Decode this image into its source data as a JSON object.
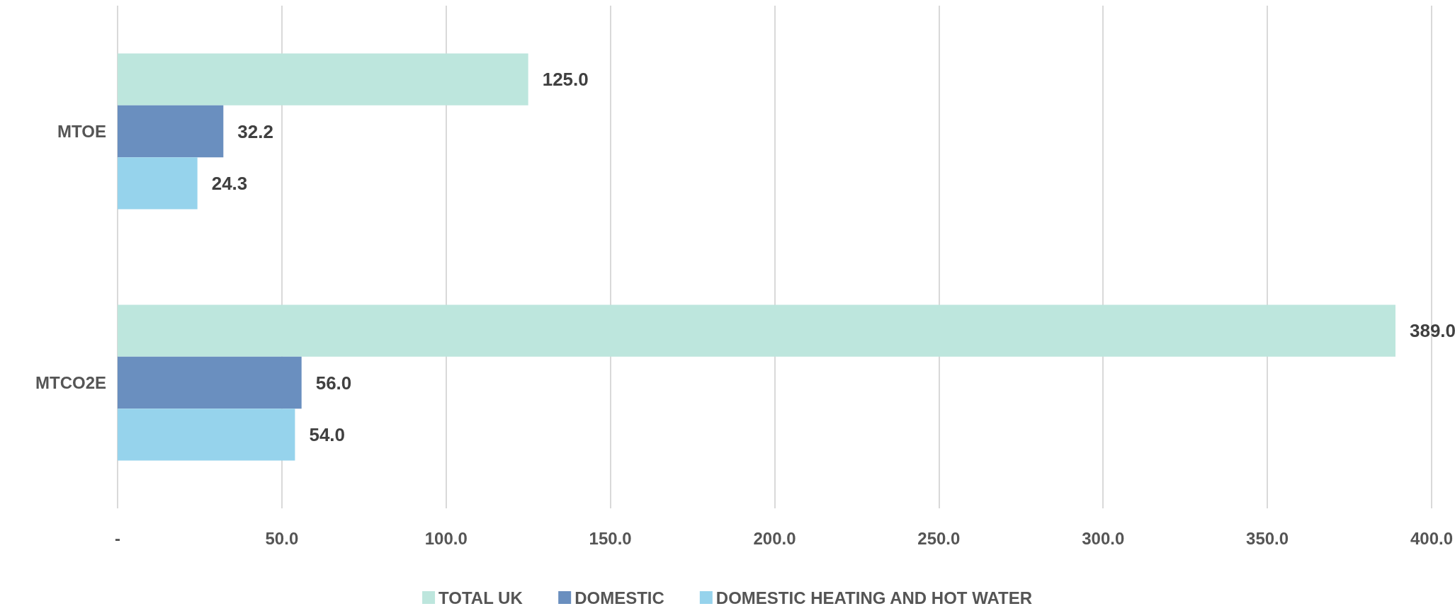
{
  "chart_data": {
    "type": "bar",
    "orientation": "horizontal",
    "categories": [
      "MTOE",
      "MTCO2E"
    ],
    "series": [
      {
        "name": "TOTAL UK",
        "color": "#bde6dd",
        "values": [
          125.0,
          389.0
        ],
        "value_labels": [
          "125.0",
          "389.0"
        ]
      },
      {
        "name": "DOMESTIC",
        "color": "#6a8fbf",
        "values": [
          32.2,
          56.0
        ],
        "value_labels": [
          "32.2",
          "56.0"
        ]
      },
      {
        "name": "DOMESTIC HEATING AND HOT WATER",
        "color": "#96d3ec",
        "values": [
          24.3,
          54.0
        ],
        "value_labels": [
          "24.3",
          "54.0"
        ]
      }
    ],
    "xlim": [
      0,
      400
    ],
    "xticks": [
      {
        "value": 0,
        "label": "-"
      },
      {
        "value": 50,
        "label": "50.0"
      },
      {
        "value": 100,
        "label": "100.0"
      },
      {
        "value": 150,
        "label": "150.0"
      },
      {
        "value": 200,
        "label": "200.0"
      },
      {
        "value": 250,
        "label": "250.0"
      },
      {
        "value": 300,
        "label": "300.0"
      },
      {
        "value": 350,
        "label": "350.0"
      },
      {
        "value": 400,
        "label": "400.0"
      }
    ],
    "grid": "x",
    "legend": "bottom"
  }
}
